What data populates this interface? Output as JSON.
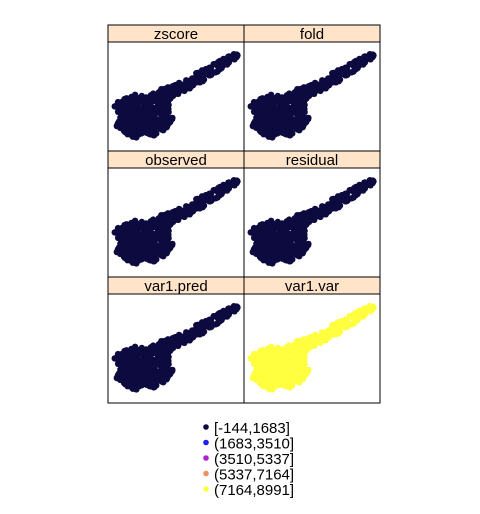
{
  "chart_data": {
    "type": "scatter",
    "layout": "3x2 trellis of spatial point maps",
    "panels": [
      {
        "name": "zscore",
        "class": 0
      },
      {
        "name": "fold",
        "class": 0
      },
      {
        "name": "observed",
        "class": 0
      },
      {
        "name": "residual",
        "class": 0
      },
      {
        "name": "var1.pred",
        "class": 0
      },
      {
        "name": "var1.var",
        "class": 4
      }
    ],
    "legend": {
      "placement": "bottom",
      "classes": [
        {
          "label": "[-144,1683]",
          "color": "#0d0a3f"
        },
        {
          "label": "(1683,3510]",
          "color": "#2020ee"
        },
        {
          "label": "(3510,5337]",
          "color": "#b020d0"
        },
        {
          "label": "(5337,7164]",
          "color": "#f09060"
        },
        {
          "label": "(7164,8991]",
          "color": "#ffff40"
        }
      ]
    },
    "strip_color": "#ffe4c9",
    "grid": false
  }
}
